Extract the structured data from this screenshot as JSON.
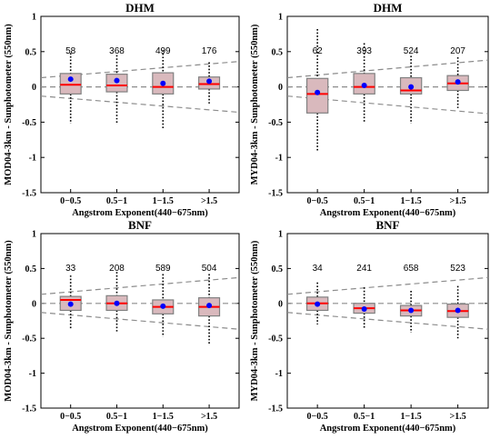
{
  "chart_data": [
    {
      "type": "box",
      "title": "DHM",
      "xlabel": "Angstrom Exponent(440−675nm)",
      "ylabel": "MOD04-3km - Sunphotometer (550nm)",
      "ylim": [
        -1.5,
        1
      ],
      "yticks": [
        "-1.5",
        "-1",
        "-0.5",
        "0",
        "0.5",
        "1"
      ],
      "categories": [
        "0−0.5",
        "0.5−1",
        "1−1.5",
        ">1.5"
      ],
      "counts": [
        "58",
        "368",
        "499",
        "176"
      ],
      "boxes": [
        {
          "whisker_low": -0.52,
          "q1": -0.1,
          "median": 0.03,
          "q3": 0.19,
          "whisker_high": 0.48,
          "mean": 0.11
        },
        {
          "whisker_low": -0.52,
          "q1": -0.07,
          "median": 0.02,
          "q3": 0.18,
          "whisker_high": 0.45,
          "mean": 0.09
        },
        {
          "whisker_low": -0.6,
          "q1": -0.1,
          "median": 0.0,
          "q3": 0.2,
          "whisker_high": 0.52,
          "mean": 0.05
        },
        {
          "whisker_low": -0.25,
          "q1": -0.03,
          "median": 0.04,
          "q3": 0.14,
          "whisker_high": 0.35,
          "mean": 0.08
        }
      ],
      "reference_lines": {
        "center": 0,
        "upper_envelope": [
          0.13,
          0.36
        ],
        "lower_envelope": [
          -0.13,
          -0.36
        ]
      }
    },
    {
      "type": "box",
      "title": "DHM",
      "xlabel": "Angstrom Exponent(440−675nm)",
      "ylabel": "MYD04-3km - Sunphotometer (550nm)",
      "ylim": [
        -1.5,
        1
      ],
      "yticks": [
        "-1.5",
        "-1",
        "-0.5",
        "0",
        "0.5",
        "1"
      ],
      "categories": [
        "0−0.5",
        "0.5−1",
        "1−1.5",
        ">1.5"
      ],
      "counts": [
        "62",
        "393",
        "524",
        "207"
      ],
      "boxes": [
        {
          "whisker_low": -0.92,
          "q1": -0.37,
          "median": -0.1,
          "q3": 0.12,
          "whisker_high": 0.82,
          "mean": -0.08
        },
        {
          "whisker_low": -0.5,
          "q1": -0.1,
          "median": 0.0,
          "q3": 0.19,
          "whisker_high": 0.62,
          "mean": 0.02
        },
        {
          "whisker_low": -0.52,
          "q1": -0.1,
          "median": -0.05,
          "q3": 0.13,
          "whisker_high": 0.44,
          "mean": 0.0
        },
        {
          "whisker_low": -0.3,
          "q1": -0.05,
          "median": 0.05,
          "q3": 0.16,
          "whisker_high": 0.42,
          "mean": 0.07
        }
      ],
      "reference_lines": {
        "center": 0,
        "upper_envelope": [
          0.13,
          0.38
        ],
        "lower_envelope": [
          -0.13,
          -0.38
        ]
      }
    },
    {
      "type": "box",
      "title": "BNF",
      "xlabel": "Angstrom Exponent(440−675nm)",
      "ylabel": "MOD04-3km - Sunphotometer (550nm)",
      "ylim": [
        -1.5,
        1
      ],
      "yticks": [
        "-1.5",
        "-1",
        "-0.5",
        "0",
        "0.5",
        "1"
      ],
      "categories": [
        "0−0.5",
        "0.5−1",
        "1−1.5",
        ">1.5"
      ],
      "counts": [
        "33",
        "208",
        "589",
        "504"
      ],
      "boxes": [
        {
          "whisker_low": -0.38,
          "q1": -0.1,
          "median": 0.05,
          "q3": 0.1,
          "whisker_high": 0.4,
          "mean": -0.01
        },
        {
          "whisker_low": -0.42,
          "q1": -0.1,
          "median": 0.0,
          "q3": 0.11,
          "whisker_high": 0.45,
          "mean": 0.0
        },
        {
          "whisker_low": -0.48,
          "q1": -0.15,
          "median": -0.05,
          "q3": 0.05,
          "whisker_high": 0.42,
          "mean": -0.04
        },
        {
          "whisker_low": -0.6,
          "q1": -0.18,
          "median": -0.05,
          "q3": 0.08,
          "whisker_high": 0.42,
          "mean": -0.03
        }
      ],
      "reference_lines": {
        "center": 0,
        "upper_envelope": [
          0.13,
          0.37
        ],
        "lower_envelope": [
          -0.13,
          -0.37
        ]
      }
    },
    {
      "type": "box",
      "title": "BNF",
      "xlabel": "Angstrom Exponent(440−675nm)",
      "ylabel": "MYD04-3km - Sunphotometer (550nm)",
      "ylim": [
        -1.5,
        1
      ],
      "yticks": [
        "-1.5",
        "-1",
        "-0.5",
        "0",
        "0.5",
        "1"
      ],
      "categories": [
        "0−0.5",
        "0.5−1",
        "1−1.5",
        ">1.5"
      ],
      "counts": [
        "34",
        "241",
        "658",
        "523"
      ],
      "boxes": [
        {
          "whisker_low": -0.3,
          "q1": -0.1,
          "median": 0.0,
          "q3": 0.09,
          "whisker_high": 0.3,
          "mean": -0.01
        },
        {
          "whisker_low": -0.36,
          "q1": -0.14,
          "median": -0.07,
          "q3": 0.0,
          "whisker_high": 0.23,
          "mean": -0.08
        },
        {
          "whisker_low": -0.42,
          "q1": -0.18,
          "median": -0.1,
          "q3": -0.03,
          "whisker_high": 0.18,
          "mean": -0.1
        },
        {
          "whisker_low": -0.5,
          "q1": -0.2,
          "median": -0.11,
          "q3": -0.01,
          "whisker_high": 0.25,
          "mean": -0.1
        }
      ],
      "reference_lines": {
        "center": 0,
        "upper_envelope": [
          0.13,
          0.37
        ],
        "lower_envelope": [
          -0.13,
          -0.37
        ]
      }
    }
  ],
  "colors": {
    "box_fill": "#d9b9bd",
    "box_edge": "#808080",
    "median": "#ff0000",
    "mean": "#0000ff",
    "whisker": "#000000",
    "reference": "#8c8c8c",
    "axis": "#000000"
  }
}
